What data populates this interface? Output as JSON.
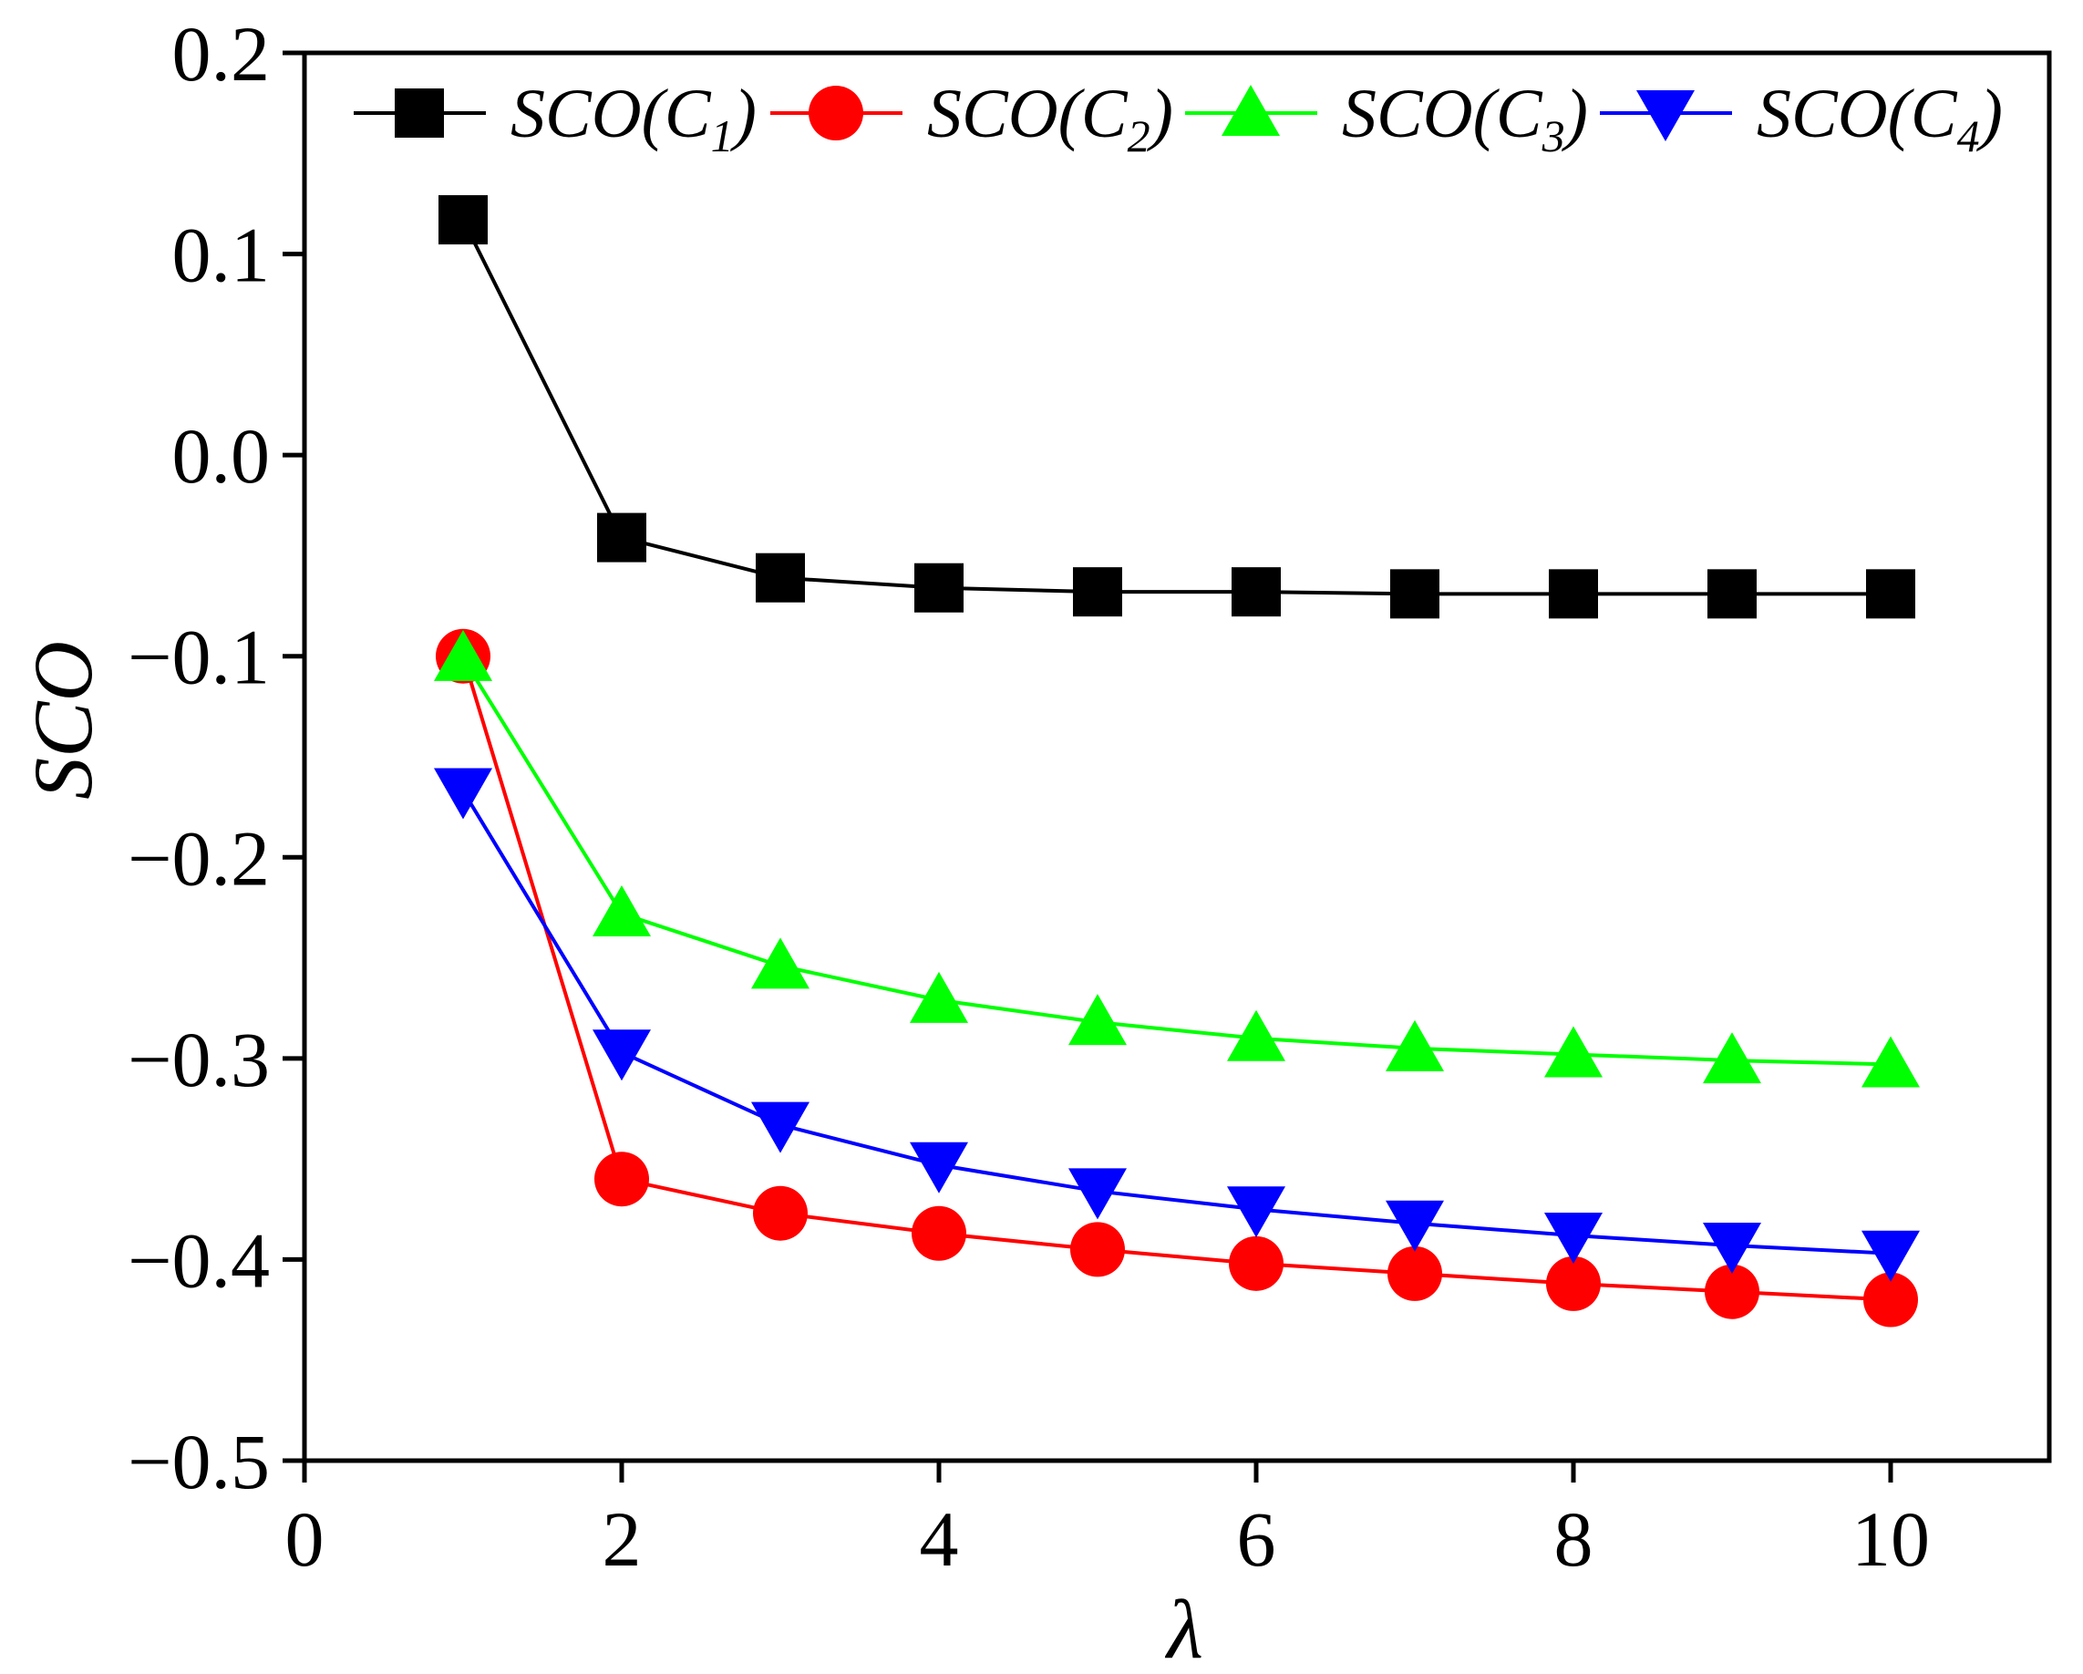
{
  "chart_data": {
    "type": "line",
    "title": "",
    "xlabel": "λ",
    "ylabel": "SCO",
    "xlim": [
      0,
      11
    ],
    "ylim": [
      -0.5,
      0.2
    ],
    "x_ticks": [
      0,
      2,
      4,
      6,
      8,
      10
    ],
    "x_tick_labels": [
      "0",
      "2",
      "4",
      "6",
      "8",
      "10"
    ],
    "y_ticks": [
      -0.5,
      -0.4,
      -0.3,
      -0.2,
      -0.1,
      0.0,
      0.1,
      0.2
    ],
    "y_tick_labels": [
      "−0.5",
      "−0.4",
      "−0.3",
      "−0.2",
      "−0.1",
      "0.0",
      "0.1",
      "0.2"
    ],
    "grid": false,
    "legend_position": "top",
    "x": [
      1,
      2,
      3,
      4,
      5,
      6,
      7,
      8,
      9,
      10
    ],
    "series": [
      {
        "name": "SCO(C1)",
        "label_main": "SCO(C",
        "label_sub": "1",
        "label_end": ")",
        "color": "#000000",
        "marker": "square",
        "values": [
          0.117,
          -0.041,
          -0.061,
          -0.066,
          -0.068,
          -0.068,
          -0.069,
          -0.069,
          -0.069,
          -0.069
        ]
      },
      {
        "name": "SCO(C2)",
        "label_main": "SCO(C",
        "label_sub": "2",
        "label_end": ")",
        "color": "#ff0000",
        "marker": "circle",
        "values": [
          -0.1,
          -0.36,
          -0.377,
          -0.387,
          -0.395,
          -0.402,
          -0.407,
          -0.412,
          -0.416,
          -0.42
        ]
      },
      {
        "name": "SCO(C3)",
        "label_main": "SCO(C",
        "label_sub": "3",
        "label_end": ")",
        "color": "#00ff00",
        "marker": "triangle-up",
        "values": [
          -0.101,
          -0.228,
          -0.254,
          -0.271,
          -0.282,
          -0.29,
          -0.295,
          -0.298,
          -0.301,
          -0.303
        ]
      },
      {
        "name": "SCO(C4)",
        "label_main": "SCO(C",
        "label_sub": "4",
        "label_end": ")",
        "color": "#0000ff",
        "marker": "triangle-down",
        "values": [
          -0.167,
          -0.297,
          -0.333,
          -0.353,
          -0.366,
          -0.375,
          -0.382,
          -0.388,
          -0.393,
          -0.397
        ]
      }
    ]
  }
}
